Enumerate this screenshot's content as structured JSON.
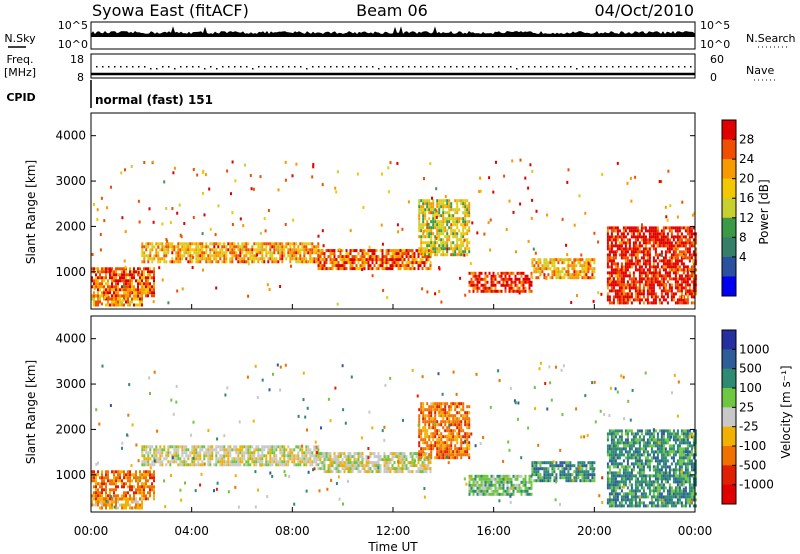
{
  "header": {
    "station": "Syowa East (fitACF)",
    "beam": "Beam 06",
    "date": "04/Oct/2010"
  },
  "panels": {
    "nsky": {
      "label": "N.Sky",
      "range_labels": [
        "10^5",
        "10^0"
      ],
      "right_label": "N.Search",
      "right_range_labels": [
        "10^5",
        "10^0"
      ]
    },
    "freq": {
      "label": "Freq.",
      "unit": "[MHz]",
      "range_labels": [
        "18",
        "8"
      ],
      "right_label": "Nave",
      "right_range_labels": [
        "60",
        "0"
      ]
    },
    "cpid": {
      "label": "CPID",
      "mode": "normal (fast) 151"
    }
  },
  "colorbars": {
    "power": {
      "label": "Power [dB]",
      "ticks": [
        "28",
        "24",
        "20",
        "16",
        "12",
        "8",
        "4"
      ],
      "colors": [
        "#e00000",
        "#f24e00",
        "#f79a00",
        "#f2c800",
        "#c8d030",
        "#3c9a46",
        "#36806a",
        "#2a50a0",
        "#0000f0"
      ]
    },
    "velocity": {
      "label": "Velocity [m s⁻¹]",
      "ticks": [
        "1000",
        "500",
        "100",
        "25",
        "-25",
        "-100",
        "-500",
        "-1000"
      ],
      "colors": [
        "#2430a0",
        "#2e5e9a",
        "#2e8a72",
        "#6fc640",
        "#c8c8c8",
        "#f2b000",
        "#f07000",
        "#e02000",
        "#e00000"
      ]
    }
  },
  "chart_data": [
    {
      "type": "heatmap",
      "title": "Power",
      "ylabel": "Slant Range [km]",
      "xlabel": "",
      "x_range_hours": [
        0,
        24
      ],
      "ylim": [
        180,
        4500
      ],
      "ytick_labels": [
        "1000",
        "2000",
        "3000",
        "4000"
      ],
      "yticks": [
        1000,
        2000,
        3000,
        4000
      ],
      "bands": [
        {
          "t0": 0.0,
          "t1": 2.5,
          "r0": 500,
          "r1": 1100,
          "level": 24
        },
        {
          "t0": 0.0,
          "t1": 2.0,
          "r0": 300,
          "r1": 500,
          "level": 20
        },
        {
          "t0": 2.0,
          "t1": 9.0,
          "r0": 1200,
          "r1": 1650,
          "level": 20
        },
        {
          "t0": 9.0,
          "t1": 13.5,
          "r0": 1050,
          "r1": 1500,
          "level": 24
        },
        {
          "t0": 13.0,
          "t1": 15.0,
          "r0": 1400,
          "r1": 2600,
          "level": 16
        },
        {
          "t0": 15.0,
          "t1": 17.5,
          "r0": 600,
          "r1": 1000,
          "level": 28
        },
        {
          "t0": 17.5,
          "t1": 20.0,
          "r0": 900,
          "r1": 1300,
          "level": 20
        },
        {
          "t0": 20.5,
          "t1": 24.0,
          "r0": 300,
          "r1": 2000,
          "level": 28
        }
      ]
    },
    {
      "type": "heatmap",
      "title": "Velocity",
      "ylabel": "Slant Range [km]",
      "xlabel": "Time UT",
      "x_range_hours": [
        0,
        24
      ],
      "xtick_labels": [
        "00:00",
        "04:00",
        "08:00",
        "12:00",
        "16:00",
        "20:00",
        "00:00"
      ],
      "xticks": [
        0,
        4,
        8,
        12,
        16,
        20,
        24
      ],
      "ylim": [
        180,
        4500
      ],
      "ytick_labels": [
        "1000",
        "2000",
        "3000",
        "4000"
      ],
      "yticks": [
        1000,
        2000,
        3000,
        4000
      ],
      "bands": [
        {
          "t0": 0.0,
          "t1": 2.5,
          "r0": 500,
          "r1": 1100,
          "level": -500
        },
        {
          "t0": 0.0,
          "t1": 2.0,
          "r0": 300,
          "r1": 500,
          "level": -100
        },
        {
          "t0": 2.0,
          "t1": 9.0,
          "r0": 1200,
          "r1": 1650,
          "level": 0
        },
        {
          "t0": 9.0,
          "t1": 13.5,
          "r0": 1050,
          "r1": 1500,
          "level": 0
        },
        {
          "t0": 13.0,
          "t1": 15.0,
          "r0": 1400,
          "r1": 2600,
          "level": -500
        },
        {
          "t0": 15.0,
          "t1": 17.5,
          "r0": 600,
          "r1": 1000,
          "level": 100
        },
        {
          "t0": 17.5,
          "t1": 20.0,
          "r0": 900,
          "r1": 1300,
          "level": 500
        },
        {
          "t0": 20.5,
          "t1": 24.0,
          "r0": 300,
          "r1": 2000,
          "level": 500
        }
      ]
    }
  ]
}
